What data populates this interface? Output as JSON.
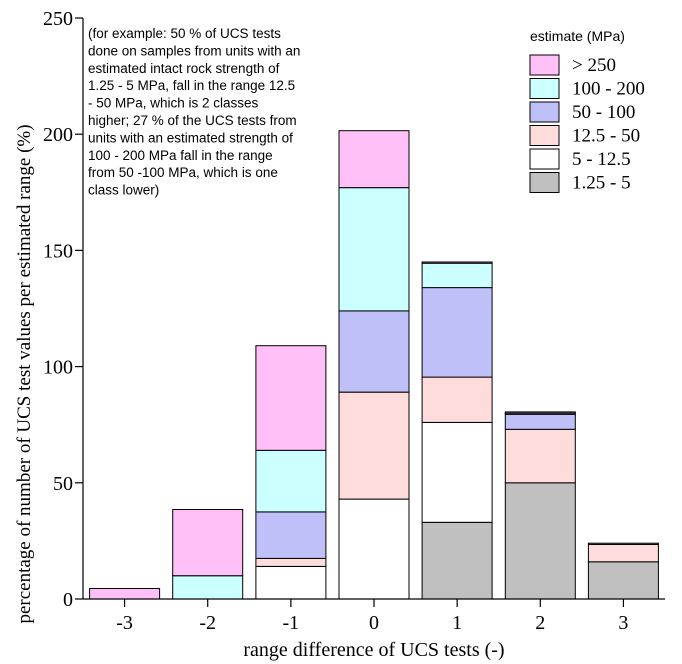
{
  "chart_data": {
    "type": "bar",
    "stacked": true,
    "xlabel": "range difference of UCS tests (-)",
    "ylabel": "percentage of number of UCS test values per estimated range (%)",
    "categories": [
      "-3",
      "-2",
      "-1",
      "0",
      "1",
      "2",
      "3"
    ],
    "yticks": [
      "0",
      "50",
      "100",
      "150",
      "200",
      "250"
    ],
    "ylim": [
      0,
      250
    ],
    "annotation": [
      "(for example: 50 % of UCS tests",
      "done on samples from units with an",
      "estimated intact rock strength of",
      "1.25 - 5 MPa, fall in the range 12.5",
      "- 50 MPa, which is 2 classes",
      "higher; 27 % of the UCS tests from",
      "units with an estimated strength of",
      "100 - 200 MPa fall in the range",
      "from 50 -100 MPa, which is one",
      "class lower)"
    ],
    "legend": {
      "title": "estimate (MPa)",
      "placement": "top-right",
      "entries": [
        "> 250",
        "100 - 200",
        "50 - 100",
        "12.5 - 50",
        "5 - 12.5",
        "1.25 - 5"
      ]
    },
    "series": [
      {
        "name": "1.25 - 5",
        "color": "#c0c0c0",
        "values": [
          0,
          0,
          0,
          0,
          33,
          50,
          16
        ]
      },
      {
        "name": "5 - 12.5",
        "color": "#ffffff",
        "values": [
          0,
          0,
          14,
          43,
          43,
          0,
          0
        ]
      },
      {
        "name": "12.5 - 50",
        "color": "#ffdcdc",
        "values": [
          0,
          0,
          3.5,
          46,
          19.5,
          23,
          7.5
        ]
      },
      {
        "name": "50 - 100",
        "color": "#c0c0f8",
        "values": [
          0,
          0,
          20,
          35,
          38.5,
          6.5,
          0
        ]
      },
      {
        "name": "100 - 200",
        "color": "#ccffff",
        "values": [
          0,
          10,
          26.5,
          53,
          10.5,
          0.5,
          0
        ]
      },
      {
        "name": "> 250",
        "color": "#ffc0f8",
        "values": [
          4.5,
          28.5,
          45,
          24.5,
          0.5,
          0.5,
          0.5
        ]
      }
    ]
  }
}
